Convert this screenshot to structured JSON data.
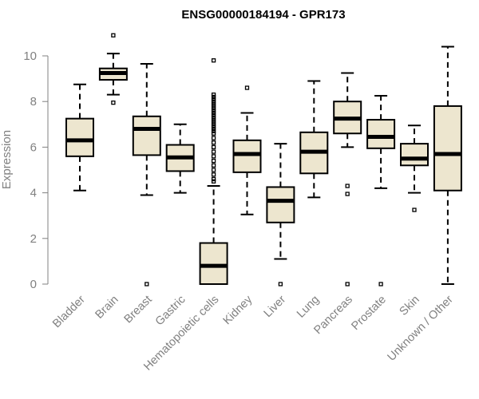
{
  "chart_data": {
    "type": "boxplot",
    "title": "ENSG00000184194 - GPR173",
    "xlabel": "",
    "ylabel": "Expression",
    "ylim": [
      0,
      10.4
    ],
    "yticks": [
      0,
      2,
      4,
      6,
      8,
      10
    ],
    "box_fill": "#ede6cf",
    "box_stroke": "#000000",
    "categories": [
      "Bladder",
      "Brain",
      "Breast",
      "Gastric",
      "Hematopoietic cells",
      "Kidney",
      "Liver",
      "Lung",
      "Pancreas",
      "Prostate",
      "Skin",
      "Unknown / Other"
    ],
    "boxes": [
      {
        "name": "Bladder",
        "whisker_low": 4.1,
        "q1": 5.6,
        "median": 6.3,
        "q3": 7.25,
        "whisker_high": 8.75,
        "outliers": []
      },
      {
        "name": "Brain",
        "whisker_low": 8.3,
        "q1": 8.95,
        "median": 9.25,
        "q3": 9.45,
        "whisker_high": 10.1,
        "outliers": [
          10.9,
          7.95
        ]
      },
      {
        "name": "Breast",
        "whisker_low": 3.9,
        "q1": 5.65,
        "median": 6.8,
        "q3": 7.35,
        "whisker_high": 9.65,
        "outliers": [
          0.0
        ]
      },
      {
        "name": "Gastric",
        "whisker_low": 4.0,
        "q1": 4.95,
        "median": 5.55,
        "q3": 6.1,
        "whisker_high": 7.0,
        "outliers": []
      },
      {
        "name": "Hematopoietic cells",
        "whisker_low": 0.0,
        "q1": 0.0,
        "median": 0.8,
        "q3": 1.8,
        "whisker_high": 4.3,
        "outliers": [
          9.8,
          8.3,
          8.2,
          8.1,
          8.0,
          7.9,
          7.8,
          7.7,
          7.6,
          7.5,
          7.4,
          7.3,
          7.2,
          7.1,
          7.0,
          6.9,
          6.8,
          6.7,
          6.6,
          6.4,
          6.2,
          6.0,
          5.8,
          5.6,
          5.4,
          5.2,
          5.0,
          4.8,
          4.6,
          4.5
        ]
      },
      {
        "name": "Kidney",
        "whisker_low": 3.05,
        "q1": 4.9,
        "median": 5.7,
        "q3": 6.3,
        "whisker_high": 7.5,
        "outliers": [
          8.6
        ]
      },
      {
        "name": "Liver",
        "whisker_low": 1.1,
        "q1": 2.7,
        "median": 3.65,
        "q3": 4.25,
        "whisker_high": 6.15,
        "outliers": [
          0.0
        ]
      },
      {
        "name": "Lung",
        "whisker_low": 3.8,
        "q1": 4.85,
        "median": 5.8,
        "q3": 6.65,
        "whisker_high": 8.9,
        "outliers": []
      },
      {
        "name": "Pancreas",
        "whisker_low": 6.0,
        "q1": 6.6,
        "median": 7.25,
        "q3": 8.0,
        "whisker_high": 9.25,
        "outliers": [
          4.3,
          3.95,
          0.0
        ]
      },
      {
        "name": "Prostate",
        "whisker_low": 4.2,
        "q1": 5.95,
        "median": 6.45,
        "q3": 7.2,
        "whisker_high": 8.25,
        "outliers": [
          0.0
        ]
      },
      {
        "name": "Skin",
        "whisker_low": 4.0,
        "q1": 5.2,
        "median": 5.5,
        "q3": 6.15,
        "whisker_high": 6.95,
        "outliers": [
          3.25
        ]
      },
      {
        "name": "Unknown / Other",
        "whisker_low": 0.0,
        "q1": 4.1,
        "median": 5.7,
        "q3": 7.8,
        "whisker_high": 10.4,
        "outliers": []
      }
    ]
  }
}
